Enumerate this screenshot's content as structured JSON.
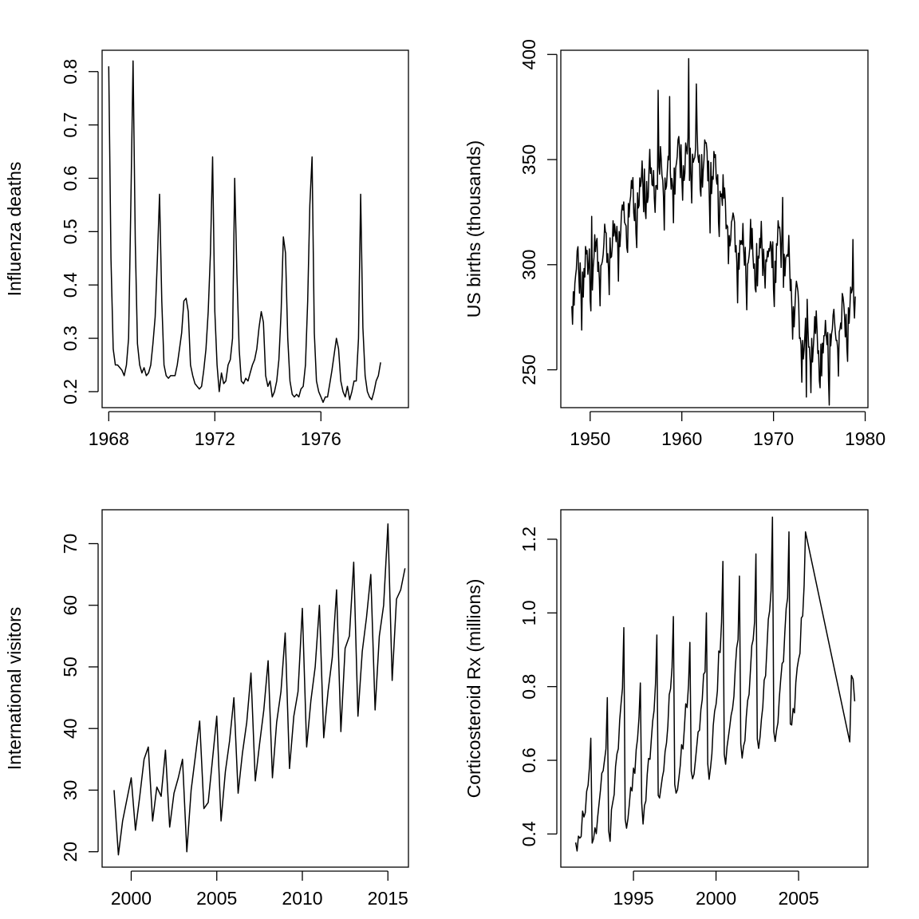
{
  "chart_data": [
    {
      "type": "line",
      "title": "",
      "xlabel": "",
      "ylabel": "Influenza deaths",
      "xlim": [
        1967.75,
        1979.3
      ],
      "ylim": [
        0.17,
        0.84
      ],
      "xticks": [
        1968,
        1972,
        1976
      ],
      "xtick_labels": [
        "1968",
        "1972",
        "1976"
      ],
      "yticks": [
        0.2,
        0.3,
        0.4,
        0.5,
        0.6,
        0.7,
        0.8
      ],
      "ytick_labels": [
        "0.2",
        "0.3",
        "0.4",
        "0.5",
        "0.6",
        "0.7",
        "0.8"
      ],
      "x_start": 1968,
      "x_step": 0.08333,
      "values": [
        0.81,
        0.45,
        0.28,
        0.25,
        0.25,
        0.245,
        0.24,
        0.23,
        0.25,
        0.3,
        0.55,
        0.82,
        0.48,
        0.29,
        0.25,
        0.235,
        0.245,
        0.23,
        0.235,
        0.25,
        0.29,
        0.34,
        0.45,
        0.57,
        0.37,
        0.25,
        0.23,
        0.225,
        0.23,
        0.23,
        0.23,
        0.25,
        0.28,
        0.31,
        0.37,
        0.375,
        0.35,
        0.25,
        0.23,
        0.215,
        0.21,
        0.205,
        0.21,
        0.24,
        0.28,
        0.35,
        0.46,
        0.64,
        0.35,
        0.25,
        0.2,
        0.235,
        0.215,
        0.22,
        0.25,
        0.26,
        0.3,
        0.6,
        0.42,
        0.28,
        0.22,
        0.215,
        0.225,
        0.22,
        0.235,
        0.25,
        0.26,
        0.28,
        0.32,
        0.35,
        0.33,
        0.23,
        0.21,
        0.22,
        0.19,
        0.2,
        0.22,
        0.26,
        0.35,
        0.49,
        0.46,
        0.3,
        0.22,
        0.195,
        0.19,
        0.195,
        0.19,
        0.205,
        0.21,
        0.25,
        0.37,
        0.55,
        0.64,
        0.31,
        0.22,
        0.2,
        0.19,
        0.18,
        0.19,
        0.19,
        0.215,
        0.24,
        0.27,
        0.3,
        0.28,
        0.22,
        0.2,
        0.19,
        0.21,
        0.185,
        0.2,
        0.22,
        0.22,
        0.3,
        0.57,
        0.32,
        0.23,
        0.2,
        0.19,
        0.185,
        0.2,
        0.22,
        0.23,
        0.255
      ]
    },
    {
      "type": "line",
      "title": "",
      "xlabel": "",
      "ylabel": "US births (thousands)",
      "xlim": [
        1946.8,
        1980.3
      ],
      "ylim": [
        232,
        402
      ],
      "xticks": [
        1950,
        1960,
        1970,
        1980
      ],
      "xtick_labels": [
        "1950",
        "1960",
        "1970",
        "1980"
      ],
      "yticks": [
        250,
        300,
        350,
        400
      ],
      "ytick_labels": [
        "250",
        "300",
        "350",
        "400"
      ],
      "x_start": 1948,
      "x_step": 0.08333,
      "trend_knots": [
        [
          1948,
          289
        ],
        [
          1952,
          305
        ],
        [
          1956,
          335
        ],
        [
          1961,
          350
        ],
        [
          1964,
          335
        ],
        [
          1966,
          305
        ],
        [
          1970,
          300
        ],
        [
          1971,
          308
        ],
        [
          1973,
          265
        ],
        [
          1976,
          258
        ],
        [
          1978.9,
          283
        ]
      ],
      "trend_amplitude": 19,
      "peaks": [
        [
          1957.4,
          383
        ],
        [
          1960.75,
          398
        ],
        [
          1961.6,
          386
        ],
        [
          1958.7,
          380
        ],
        [
          1973.6,
          237
        ],
        [
          1950.2,
          323
        ],
        [
          1971.0,
          332
        ],
        [
          1978.7,
          312
        ]
      ]
    },
    {
      "type": "line",
      "title": "",
      "xlabel": "",
      "ylabel": "International visitors",
      "xlim": [
        1998.3,
        2016.2
      ],
      "ylim": [
        17.5,
        75.5
      ],
      "xticks": [
        2000,
        2005,
        2010,
        2015
      ],
      "xtick_labels": [
        "2000",
        "2005",
        "2010",
        "2015"
      ],
      "yticks": [
        20,
        30,
        40,
        50,
        60,
        70
      ],
      "ytick_labels": [
        "20",
        "30",
        "40",
        "50",
        "60",
        "70"
      ],
      "x_start": 1999,
      "x_step": 0.25,
      "values": [
        30,
        19.5,
        25,
        28.5,
        32,
        23.5,
        29,
        35,
        37,
        25,
        30.5,
        29,
        36.5,
        24,
        29.5,
        32,
        35,
        20,
        30,
        35.5,
        41.2,
        27,
        28,
        35,
        42,
        25,
        33,
        38,
        45,
        29.5,
        36,
        41,
        49,
        31.5,
        37.5,
        43,
        51,
        32,
        41,
        46,
        55.5,
        33.5,
        42,
        46,
        59.5,
        37,
        44.5,
        50,
        60,
        38.5,
        46,
        51.5,
        62.5,
        39.5,
        53,
        55,
        67,
        42,
        52.5,
        58,
        65,
        43,
        55,
        60,
        73.2,
        47.8,
        61,
        62.5,
        66
      ]
    },
    {
      "type": "line",
      "title": "",
      "xlabel": "",
      "ylabel": "Corticosteroid Rx (millions)",
      "xlim": [
        1990.6,
        2009.2
      ],
      "ylim": [
        0.31,
        1.28
      ],
      "xticks": [
        1995,
        2000,
        2005
      ],
      "xtick_labels": [
        "1995",
        "2000",
        "2005"
      ],
      "yticks": [
        0.4,
        0.6,
        0.8,
        1.0,
        1.2
      ],
      "ytick_labels": [
        "0.4",
        "0.6",
        "0.8",
        "1.0",
        "1.2"
      ],
      "x_start": 1991.5,
      "x_step": 0.08333,
      "trough_level_start": 0.35,
      "trough_level_end": 0.68,
      "peaks": [
        0.66,
        0.77,
        0.96,
        0.81,
        0.94,
        0.99,
        0.92,
        1.0,
        1.14,
        1.1,
        1.16,
        1.26,
        1.22,
        1.22
      ]
    }
  ]
}
